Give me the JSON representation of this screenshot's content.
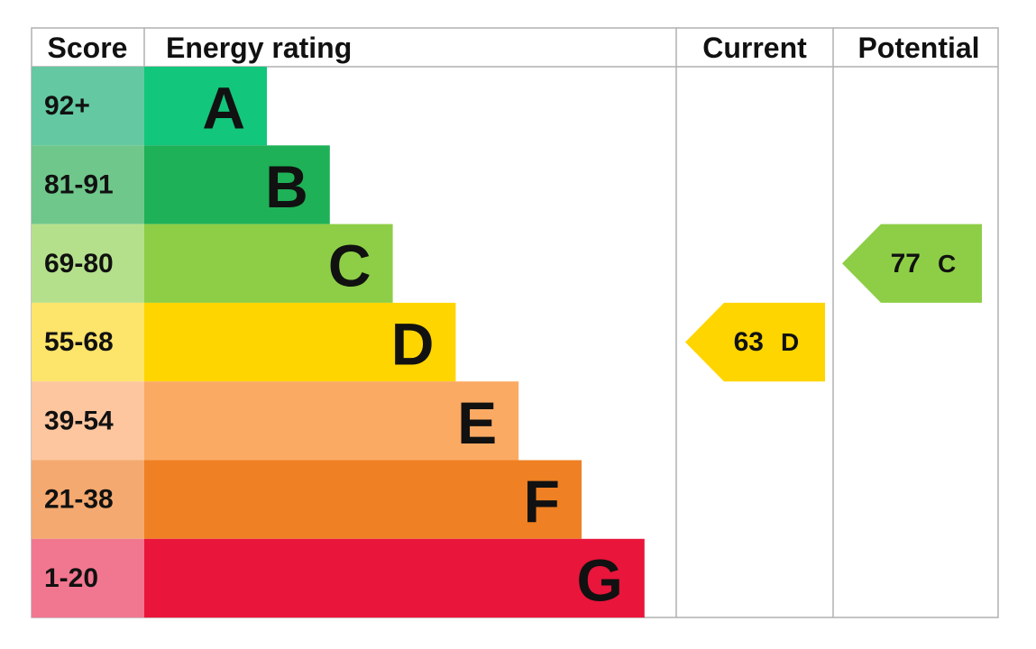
{
  "header": {
    "score": "Score",
    "energy_rating": "Energy rating",
    "current": "Current",
    "potential": "Potential"
  },
  "bands": [
    {
      "score": "92+",
      "letter": "A",
      "color": "#12c67c",
      "score_color": "#64c9a2"
    },
    {
      "score": "81-91",
      "letter": "B",
      "color": "#1fb157",
      "score_color": "#70c78b"
    },
    {
      "score": "69-80",
      "letter": "C",
      "color": "#8dce46",
      "score_color": "#b5e08b"
    },
    {
      "score": "55-68",
      "letter": "D",
      "color": "#ffd500",
      "score_color": "#fde46a"
    },
    {
      "score": "39-54",
      "letter": "E",
      "color": "#fbaa64",
      "score_color": "#fdc69e"
    },
    {
      "score": "21-38",
      "letter": "F",
      "color": "#ef8023",
      "score_color": "#f4a970"
    },
    {
      "score": "1-20",
      "letter": "G",
      "color": "#e9153b",
      "score_color": "#f17790"
    }
  ],
  "current": {
    "value": 63,
    "letter": "D",
    "color": "#ffd500"
  },
  "potential": {
    "value": 77,
    "letter": "C",
    "color": "#8dce46"
  }
}
